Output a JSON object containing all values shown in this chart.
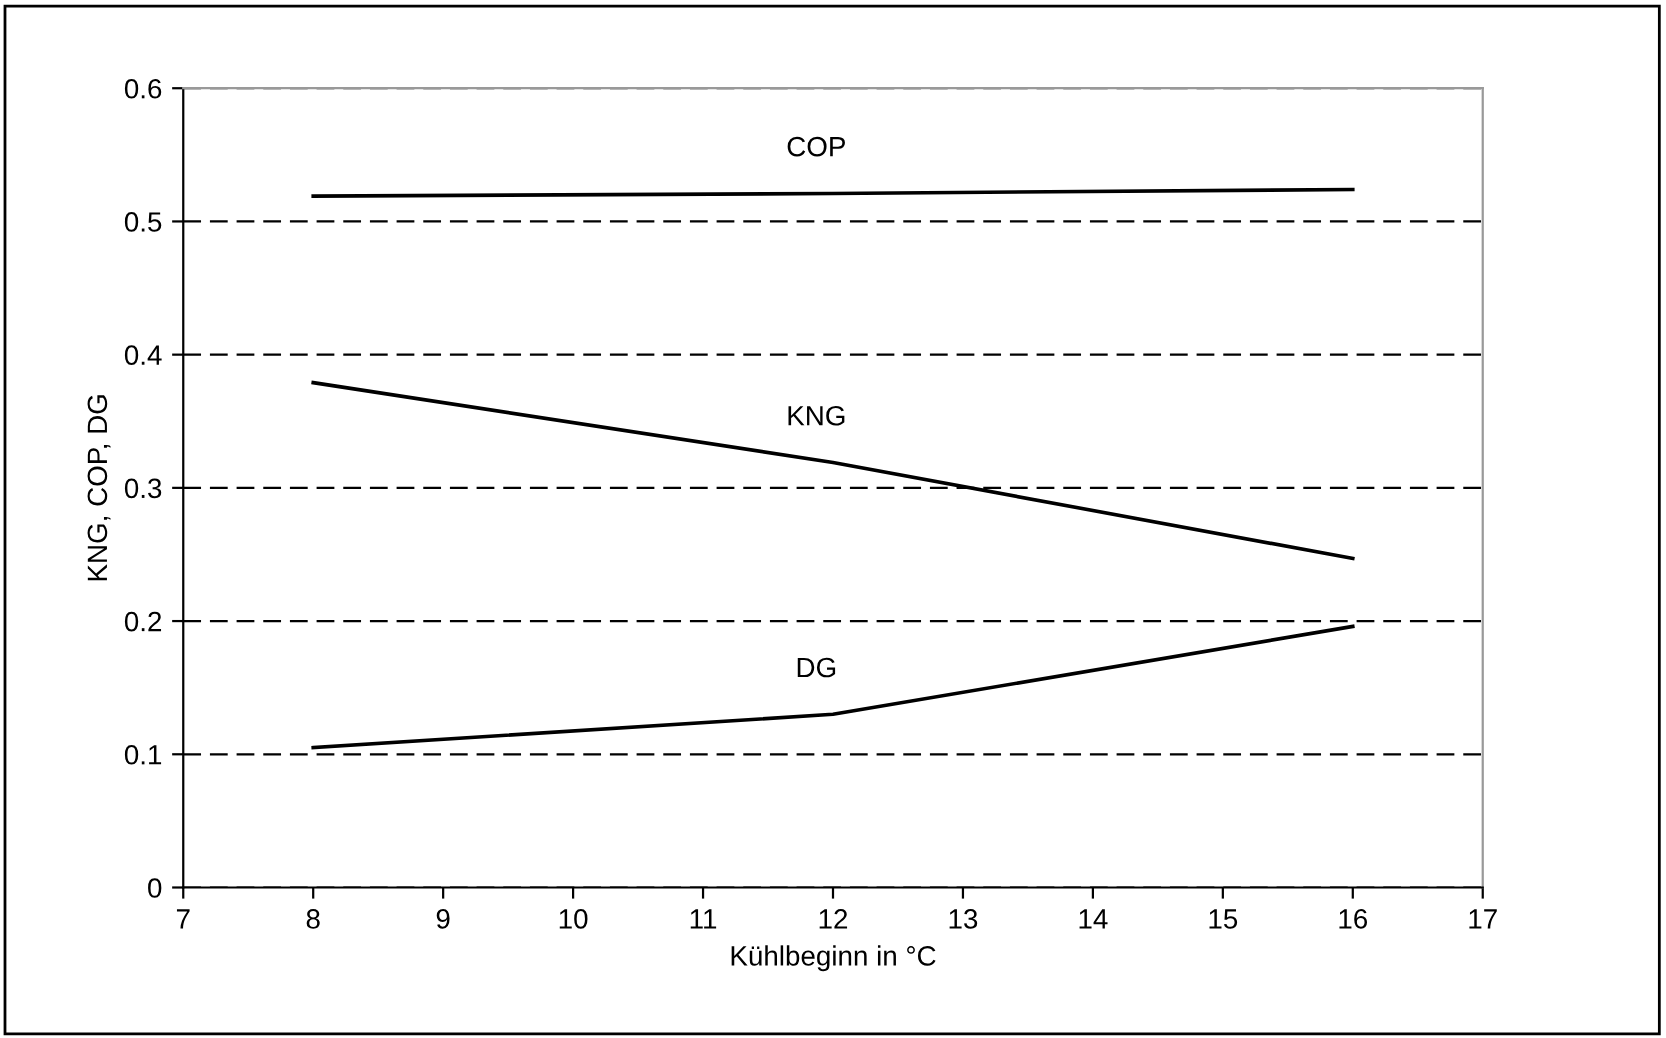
{
  "chart_data": {
    "type": "line",
    "xlabel": "Kühlbeginn in °C",
    "ylabel": "KNG, COP, DG",
    "x": [
      8,
      12,
      16
    ],
    "series": [
      {
        "name": "COP",
        "color": "#000000",
        "values": [
          0.519,
          0.521,
          0.524
        ]
      },
      {
        "name": "KNG",
        "color": "#000000",
        "values": [
          0.379,
          0.319,
          0.247
        ]
      },
      {
        "name": "DG",
        "color": "#000000",
        "values": [
          0.105,
          0.13,
          0.196
        ]
      }
    ],
    "xlim": [
      7,
      17
    ],
    "xticks": [
      7,
      8,
      9,
      10,
      11,
      12,
      13,
      14,
      15,
      16,
      17
    ],
    "ylim": [
      0,
      0.6
    ],
    "yticks": [
      0,
      0.1,
      0.2,
      0.3,
      0.4,
      0.5,
      0.6
    ],
    "grid": "y",
    "line_style": "solid",
    "marker": "none",
    "legend": false
  }
}
